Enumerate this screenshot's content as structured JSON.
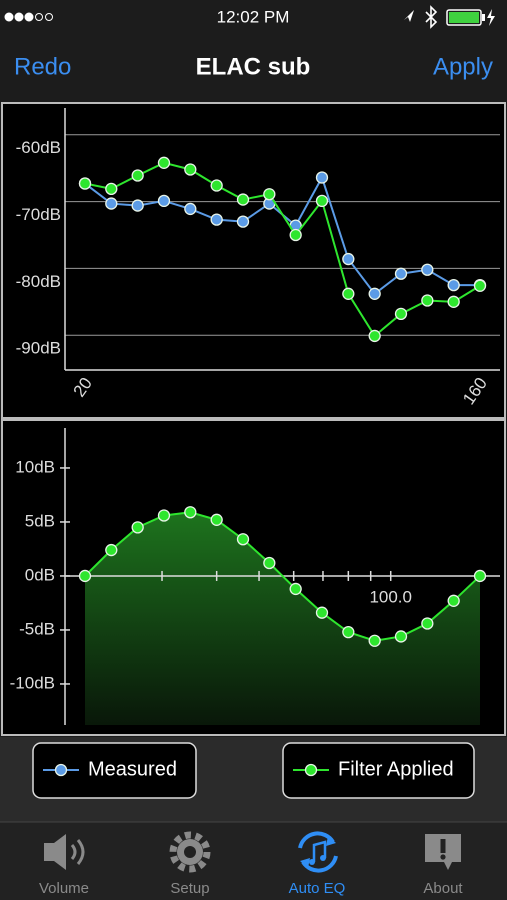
{
  "status_bar": {
    "time": "12:02 PM"
  },
  "nav_bar": {
    "left_button": "Redo",
    "title": "ELAC sub",
    "right_button": "Apply"
  },
  "chart_data": [
    {
      "type": "line",
      "x": [
        20,
        22.97,
        26.39,
        30.31,
        34.82,
        40,
        45.95,
        52.78,
        60.63,
        69.64,
        80,
        91.9,
        105.56,
        121.26,
        139.29,
        160
      ],
      "xlim": [
        20,
        160
      ],
      "log_x": true,
      "xticks": [
        20,
        160
      ],
      "ylim": [
        -95.2,
        -56
      ],
      "yticks": [
        {
          "value": -60,
          "label": "-60dB"
        },
        {
          "value": -70,
          "label": "-70dB"
        },
        {
          "value": -80,
          "label": "-80dB"
        },
        {
          "value": -90,
          "label": "-90dB"
        }
      ],
      "grid": true,
      "series": [
        {
          "name": "Measured",
          "color": "#5b9be6",
          "values": [
            -67.3,
            -70.3,
            -70.6,
            -69.9,
            -71.1,
            -72.7,
            -73.0,
            -70.3,
            -73.6,
            -66.4,
            -78.6,
            -83.8,
            -80.8,
            -80.2,
            -82.5,
            -82.5
          ]
        },
        {
          "name": "Filter Applied",
          "color": "#2ee62e",
          "values": [
            -67.3,
            -68.1,
            -66.1,
            -64.2,
            -65.2,
            -67.6,
            -69.7,
            -68.9,
            -75.0,
            -69.9,
            -83.8,
            -90.1,
            -86.8,
            -84.8,
            -85.0,
            -82.6
          ]
        }
      ]
    },
    {
      "type": "area",
      "x": [
        20,
        22.97,
        26.39,
        30.31,
        34.82,
        40,
        45.95,
        52.78,
        60.63,
        69.64,
        80,
        91.9,
        105.56,
        121.26,
        139.29,
        160
      ],
      "xlim": [
        20,
        160
      ],
      "log_x": true,
      "xticks": [
        {
          "value": 100,
          "label": "100.0"
        }
      ],
      "minor_xticks": [
        30,
        40,
        50,
        60,
        70,
        80,
        90
      ],
      "ylim": [
        -13.8,
        13.7
      ],
      "yticks": [
        {
          "value": 10,
          "label": "10dB"
        },
        {
          "value": 5,
          "label": "5dB"
        },
        {
          "value": 0,
          "label": "0dB"
        },
        {
          "value": -5,
          "label": "-5dB"
        },
        {
          "value": -10,
          "label": "-10dB"
        }
      ],
      "grid": false,
      "series": [
        {
          "color": "#2ee62e",
          "values": [
            0,
            2.4,
            4.5,
            5.6,
            5.9,
            5.2,
            3.4,
            1.2,
            -1.2,
            -3.4,
            -5.2,
            -6.0,
            -5.6,
            -4.4,
            -2.3,
            0
          ]
        }
      ]
    }
  ],
  "tab_bar": {
    "tabs": [
      "Volume",
      "Setup",
      "Auto EQ",
      "About"
    ],
    "active": 2
  }
}
